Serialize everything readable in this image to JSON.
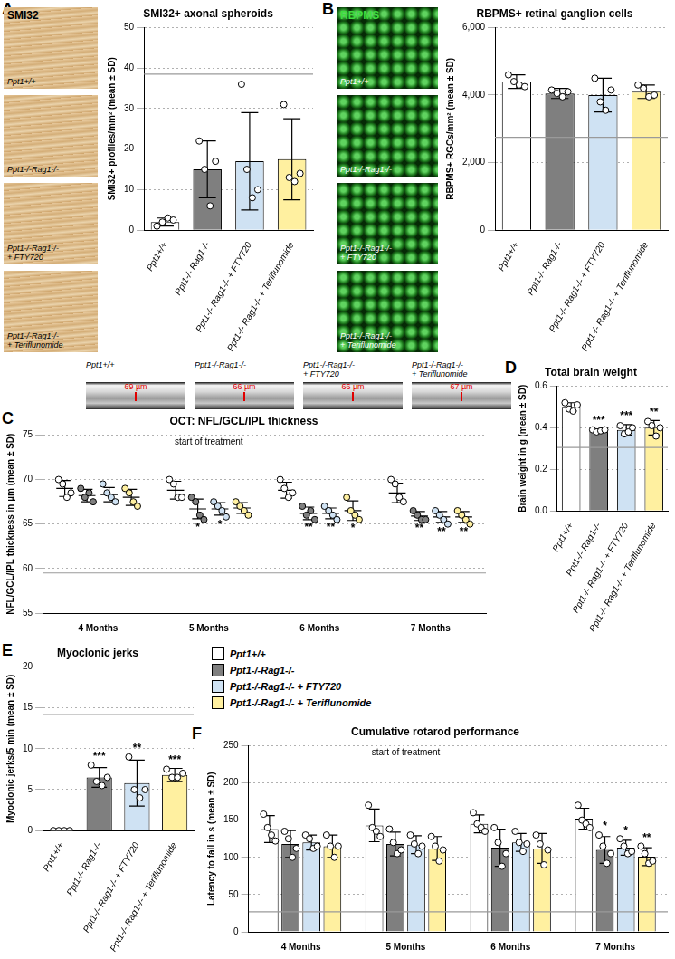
{
  "panel_letters": [
    "A",
    "B",
    "C",
    "D",
    "E",
    "F"
  ],
  "images": {
    "A": {
      "stain": "SMI32",
      "labels": [
        [
          "Ppt1+/+"
        ],
        [
          "Ppt1-/-Rag1-/-"
        ],
        [
          "Ppt1-/-Rag1-/-",
          "+ FTY720"
        ],
        [
          "Ppt1-/-Rag1-/-",
          "+ Teriflunomide"
        ]
      ]
    },
    "B": {
      "stain": "RBPMS",
      "labels": [
        [
          "Ppt1+/+"
        ],
        [
          "Ppt1-/-Rag1-/-"
        ],
        [
          "Ppt1-/-Rag1-/-",
          "+ FTY720"
        ],
        [
          "Ppt1-/-Rag1-/-",
          "+ Teriflunomide"
        ]
      ]
    },
    "OCT": {
      "labels": [
        [
          "Ppt1+/+"
        ],
        [
          "Ppt1-/-Rag1-/-"
        ],
        [
          "Ppt1-/-Rag1-/-",
          "+ FTY720"
        ],
        [
          "Ppt1-/-Rag1-/-",
          "+ Teriflunomide"
        ]
      ],
      "measurements": [
        "69 µm",
        "66 µm",
        "66 µm",
        "67 µm"
      ]
    }
  },
  "chart_data": [
    {
      "type": "bar",
      "title": "SMI32+ axonal spheroids",
      "y_label": "SMI32+ profiles/mm² (mean ± SD)",
      "categories": [
        "Ppt1+/+",
        "Ppt1-/- Rag1-/-",
        "Ppt1-/- Rag1-/- + FTY720",
        "Ppt1-/- Rag1-/- + Teriflunomide"
      ],
      "values": [
        2,
        15,
        17,
        17.5
      ],
      "sd": [
        1,
        7,
        12,
        10
      ],
      "points": [
        [
          1,
          2,
          3,
          2.5
        ],
        [
          22,
          15,
          6,
          17
        ],
        [
          36,
          15,
          8,
          10
        ],
        [
          31,
          13,
          12,
          14
        ]
      ],
      "colors": [
        "#ffffff",
        "#7f7f7f",
        "#cfe2f3",
        "#fff0a0"
      ],
      "reference_line": 38.5,
      "ylim": [
        0,
        50
      ],
      "yticks": [
        0,
        10,
        20,
        30,
        40,
        50
      ],
      "grid": true
    },
    {
      "type": "bar",
      "title": "RBPMS+ retinal ganglion cells",
      "y_label": "RBPMS+ RGCs/mm² (mean ± SD)",
      "categories": [
        "Ppt1+/+",
        "Ppt1-/- Rag1-/-",
        "Ppt1-/- Rag1-/- + FTY720",
        "Ppt1-/- Rag1-/- + Teriflunomide"
      ],
      "values": [
        4400,
        4050,
        4000,
        4100
      ],
      "sd": [
        200,
        150,
        500,
        200
      ],
      "points": [
        [
          4600,
          4400,
          4300,
          4250
        ],
        [
          4150,
          4050,
          3950,
          4100
        ],
        [
          4500,
          3800,
          3550,
          4150
        ],
        [
          4300,
          4200,
          3950,
          4000
        ]
      ],
      "colors": [
        "#ffffff",
        "#7f7f7f",
        "#cfe2f3",
        "#fff0a0"
      ],
      "reference_line": 2750,
      "ylim": [
        0,
        6000
      ],
      "yticks": [
        0,
        {
          "value": 2000,
          "label": "2,000"
        },
        {
          "value": 4000,
          "label": "4,000"
        },
        {
          "value": 6000,
          "label": "6,000"
        }
      ],
      "grid": true
    },
    {
      "type": "dot",
      "title": "OCT: NFL/GCL/IPL thickness",
      "y_label": "NFL/GCL/IPL thickness in µm (mean ± SD)",
      "categories": [
        "4 Months",
        "5 Months",
        "6 Months",
        "7 Months"
      ],
      "annotation": {
        "text": "start of treatment",
        "category": "5 Months"
      },
      "series": [
        {
          "name": "Ppt1+/+",
          "color": "#ffffff",
          "values": [
            69,
            68.8,
            68.8,
            68.5
          ],
          "sd": [
            0.9,
            1,
            0.9,
            1.1
          ],
          "points": [
            [
              70,
              69.5,
              68,
              68.5
            ],
            [
              70,
              69.5,
              68,
              68
            ],
            [
              70,
              69,
              68,
              68.5
            ],
            [
              70,
              69.5,
              68,
              67.5
            ]
          ],
          "significance": [
            null,
            null,
            null,
            null
          ]
        },
        {
          "name": "Ppt1-/-Rag1-/-",
          "color": "#7f7f7f",
          "values": [
            68.2,
            66.7,
            66.2,
            65.9
          ],
          "sd": [
            0.7,
            1.1,
            0.7,
            0.5
          ],
          "points": [
            [
              69,
              68,
              68.5,
              67.5
            ],
            [
              68,
              67.5,
              66,
              65.5
            ],
            [
              67,
              66,
              66.5,
              65.5
            ],
            [
              66.5,
              66,
              65.5,
              65.5
            ]
          ],
          "significance": [
            null,
            "*",
            "**",
            "**"
          ]
        },
        {
          "name": "Ppt1-/-Rag1-/- + FTY720",
          "color": "#cfe2f3",
          "values": [
            68.3,
            66.7,
            66.2,
            65.8
          ],
          "sd": [
            0.8,
            0.7,
            0.6,
            0.6
          ],
          "points": [
            [
              69.5,
              68.5,
              68,
              67.5
            ],
            [
              67.5,
              67,
              66.5,
              65.8
            ],
            [
              67,
              66.5,
              66,
              65.5
            ],
            [
              66.5,
              66,
              65.5,
              65
            ]
          ],
          "significance": [
            null,
            "*",
            "**",
            "**"
          ]
        },
        {
          "name": "Ppt1-/-Rag1-/- + Teriflunomide",
          "color": "#fff0a0",
          "values": [
            68,
            66.8,
            66.5,
            65.8
          ],
          "sd": [
            0.9,
            0.6,
            1.1,
            0.6
          ],
          "points": [
            [
              69,
              68.5,
              67.5,
              67
            ],
            [
              67.5,
              67,
              66.5,
              66
            ],
            [
              68,
              66.5,
              66,
              65.5
            ],
            [
              66.5,
              66,
              65.5,
              65
            ]
          ],
          "significance": [
            null,
            null,
            "*",
            "**"
          ]
        }
      ],
      "reference_line": 59.5,
      "ylim": [
        55,
        75
      ],
      "yticks": [
        55,
        60,
        65,
        70,
        75
      ],
      "grid": true
    },
    {
      "type": "bar",
      "title": "Total brain weight",
      "y_label": "Brain weight in g (mean ± SD)",
      "categories": [
        "Ppt1+/+",
        "Ppt1-/- Rag1-/-",
        "Ppt1-/- Rag1-/- + FTY720",
        "Ppt1-/- Rag1-/- + Teriflunomide"
      ],
      "values": [
        0.5,
        0.385,
        0.39,
        0.4
      ],
      "sd": [
        0.02,
        0.01,
        0.025,
        0.035
      ],
      "points": [
        [
          0.52,
          0.49,
          0.48,
          0.51
        ],
        [
          0.39,
          0.38,
          0.385,
          0.39
        ],
        [
          0.41,
          0.37,
          0.38,
          0.4
        ],
        [
          0.43,
          0.41,
          0.36,
          0.4
        ]
      ],
      "colors": [
        "#ffffff",
        "#7f7f7f",
        "#cfe2f3",
        "#fff0a0"
      ],
      "significance": [
        null,
        "***",
        "***",
        "**"
      ],
      "reference_line": 0.305,
      "ylim": [
        0,
        0.6
      ],
      "yticks": [
        {
          "value": 0,
          "label": "0.0"
        },
        0.2,
        0.4,
        0.6
      ],
      "grid": true
    },
    {
      "type": "bar",
      "title": "Myoclonic jerks",
      "y_label": "Myoclonic jerks/5 min (mean ± SD)",
      "categories": [
        "Ppt1+/+",
        "Ppt1-/- Rag1-/-",
        "Ppt1-/- Rag1-/- + FTY720",
        "Ppt1-/- Rag1-/- + Teriflunomide"
      ],
      "values": [
        0,
        6.5,
        5.8,
        6.8
      ],
      "sd": [
        0,
        1.2,
        2.8,
        0.8
      ],
      "points": [
        [
          0,
          0,
          0,
          0
        ],
        [
          8,
          6,
          5.5,
          6.5
        ],
        [
          9,
          5,
          4,
          5
        ],
        [
          7.5,
          6.5,
          6.5,
          7
        ]
      ],
      "colors": [
        "#ffffff",
        "#7f7f7f",
        "#cfe2f3",
        "#fff0a0"
      ],
      "significance": [
        null,
        "***",
        "**",
        "***"
      ],
      "reference_line": 14.2,
      "ylim": [
        0,
        20
      ],
      "yticks": [
        0,
        5,
        10,
        15,
        20
      ],
      "grid": true
    },
    {
      "type": "bar",
      "title": "Cumulative rotarod performance",
      "y_label": "Latency to fall in s (mean ± SD)",
      "categories": [
        "4 Months",
        "5 Months",
        "6 Months",
        "7 Months"
      ],
      "annotation": {
        "text": "start of treatment",
        "category": "5 Months"
      },
      "legend": "top-left",
      "series": [
        {
          "name": "Ppt1+/+",
          "color": "#ffffff",
          "values": [
            138,
            143,
            145,
            152
          ],
          "sd": [
            18,
            22,
            12,
            14
          ],
          "points": [
            [
              158,
              140,
              130,
              122
            ],
            [
              170,
              140,
              135,
              128
            ],
            [
              160,
              145,
              140,
              135
            ],
            [
              170,
              150,
              145,
              140
            ]
          ],
          "significance": [
            null,
            null,
            null,
            null
          ]
        },
        {
          "name": "Ppt1-/-Rag1-/-",
          "color": "#7f7f7f",
          "values": [
            118,
            118,
            113,
            110
          ],
          "sd": [
            18,
            16,
            25,
            18
          ],
          "points": [
            [
              135,
              125,
              100,
              112
            ],
            [
              138,
              120,
              105,
              110
            ],
            [
              140,
              120,
              88,
              105
            ],
            [
              130,
              115,
              92,
              105
            ]
          ],
          "significance": [
            null,
            null,
            null,
            "*"
          ]
        },
        {
          "name": "Ppt1-/-Rag1-/- + FTY720",
          "color": "#cfe2f3",
          "values": [
            120,
            117,
            120,
            113
          ],
          "sd": [
            10,
            12,
            12,
            10
          ],
          "points": [
            [
              130,
              125,
              112,
              115
            ],
            [
              130,
              118,
              105,
              115
            ],
            [
              135,
              120,
              108,
              118
            ],
            [
              125,
              115,
              105,
              108
            ]
          ],
          "significance": [
            null,
            null,
            null,
            "*"
          ]
        },
        {
          "name": "Ppt1-/-Rag1-/- + Teriflunomide",
          "color": "#fff0a0",
          "values": [
            115,
            112,
            112,
            101
          ],
          "sd": [
            15,
            16,
            20,
            12
          ],
          "points": [
            [
              130,
              115,
              100,
              115
            ],
            [
              128,
              115,
              95,
              110
            ],
            [
              130,
              118,
              90,
              110
            ],
            [
              115,
              105,
              92,
              95
            ]
          ],
          "significance": [
            null,
            null,
            null,
            "**"
          ]
        }
      ],
      "reference_line": 27,
      "ylim": [
        0,
        250
      ],
      "yticks": [
        0,
        50,
        100,
        150,
        200,
        250
      ],
      "grid": true
    }
  ]
}
